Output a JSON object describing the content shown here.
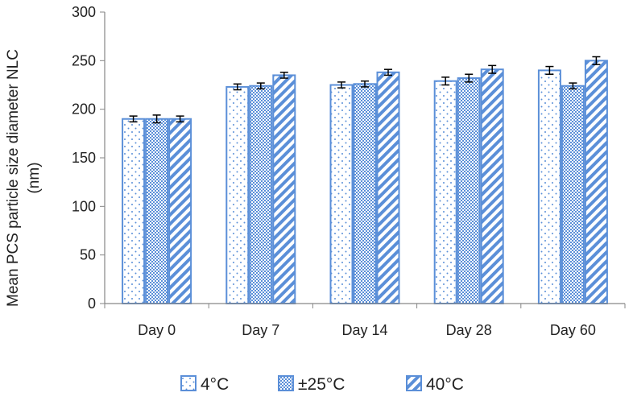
{
  "chart_data": {
    "type": "bar",
    "title": "",
    "xlabel": "",
    "ylabel": "Mean PCS particle size diameter NLC (nm)",
    "ylabel_lines": [
      "Mean PCS particle size diameter NLC",
      "(nm)"
    ],
    "ylim": [
      0,
      300
    ],
    "yticks": [
      0,
      50,
      100,
      150,
      200,
      250,
      300
    ],
    "grid": false,
    "legend_position": "bottom",
    "categories": [
      "Day 0",
      "Day 7",
      "Day 14",
      "Day 28",
      "Day 60"
    ],
    "series": [
      {
        "name": "4°C",
        "pattern": "dots",
        "values": [
          190,
          223,
          225,
          229,
          240
        ],
        "errors": [
          3,
          3,
          3,
          4,
          4
        ]
      },
      {
        "name": "±25°C",
        "pattern": "checker",
        "values": [
          190,
          224,
          226,
          232,
          224
        ],
        "errors": [
          4,
          3,
          3,
          4,
          3
        ]
      },
      {
        "name": "40°C",
        "pattern": "diagonal-stripes",
        "values": [
          190,
          235,
          238,
          241,
          250
        ],
        "errors": [
          3,
          3,
          3,
          4,
          4
        ]
      }
    ],
    "colors": {
      "bar_outline": "#5b8fd8",
      "pattern": "#5b8fd8",
      "axis": "#868686",
      "error_bar": "#000000"
    }
  }
}
